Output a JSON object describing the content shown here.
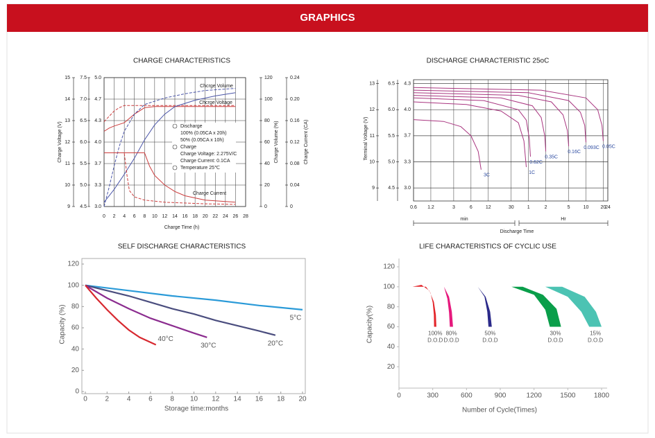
{
  "header": {
    "title": "GRAPHICS"
  },
  "chart_data": [
    {
      "type": "multi-axis-line",
      "title": "CHARGE CHARACTERISTICS",
      "xlabel": "Charge Time (h)",
      "xlim": [
        0,
        28
      ],
      "xticks": [
        0,
        2,
        4,
        6,
        8,
        10,
        12,
        14,
        16,
        18,
        20,
        22,
        24,
        26,
        28
      ],
      "grid": true,
      "axes": [
        {
          "label": "Charge Voltage (V)",
          "lim": [
            9,
            15
          ],
          "ticks": [
            9,
            10,
            11,
            12,
            13,
            14,
            15
          ]
        },
        {
          "lim": [
            4.5,
            7.5
          ],
          "ticks": [
            4.5,
            {
              "value": 5,
              "label": "5.0"
            },
            5.5,
            {
              "value": 6,
              "label": "6.0"
            },
            6.5,
            {
              "value": 7,
              "label": "7.0"
            },
            7.5
          ]
        },
        {
          "lim": [
            3,
            5
          ],
          "ticks": [
            {
              "value": 3,
              "label": "3.0"
            },
            {
              "value": 3.333,
              "label": "3.3"
            },
            {
              "value": 3.667,
              "label": "3.7"
            },
            {
              "value": 4,
              "label": "4.0"
            },
            {
              "value": 4.333,
              "label": "4.3"
            },
            {
              "value": 4.667,
              "label": "4.7"
            },
            {
              "value": 5,
              "label": "5.0"
            }
          ]
        },
        {
          "label": "Charge Volume (%)",
          "lim": [
            0,
            120
          ],
          "ticks": [
            0,
            20,
            40,
            60,
            80,
            100,
            120
          ]
        },
        {
          "label": "Charge Current (CA)",
          "lim": [
            0,
            0.24
          ],
          "ticks": [
            0,
            0.04,
            0.08,
            0.12,
            0.16,
            {
              "value": 0.2,
              "label": "0.20"
            },
            0.24
          ]
        }
      ],
      "annotations": [
        "Chcrge Volume",
        "Chcrge Voltage",
        "Charge Current"
      ],
      "legend": [
        "Discharge",
        "100%  (0.05CA x 20h)",
        "50%  (0.05CA x 10h)",
        "Charge",
        "Charge Voltage: 2.275V/C",
        "Charge Current: 0.1CA",
        "Temperature 25℃"
      ],
      "series": [
        {
          "axis": 0,
          "color": "#cc3b3b",
          "dashed": false,
          "x": [
            0,
            1,
            2,
            4,
            6,
            8,
            10,
            14,
            20,
            26
          ],
          "values": [
            12.5,
            12.65,
            12.75,
            12.9,
            13.3,
            13.6,
            13.65,
            13.65,
            13.65,
            13.65
          ]
        },
        {
          "axis": 0,
          "color": "#cc3b3b",
          "dashed": true,
          "x": [
            0,
            1,
            2,
            3,
            4,
            8,
            14,
            20,
            26
          ],
          "values": [
            12.95,
            13.2,
            13.45,
            13.6,
            13.7,
            13.7,
            13.7,
            13.7,
            13.7
          ]
        },
        {
          "axis": 3,
          "color": "#4a55a8",
          "dashed": false,
          "x": [
            0,
            2,
            4,
            6,
            8,
            10,
            12,
            14,
            18,
            22,
            26
          ],
          "values": [
            4,
            16,
            30,
            45,
            62,
            76,
            86,
            93,
            99,
            103,
            106
          ]
        },
        {
          "axis": 3,
          "color": "#4a55a8",
          "dashed": true,
          "x": [
            0,
            1,
            2,
            3,
            4,
            6,
            8,
            12,
            16,
            20,
            26
          ],
          "values": [
            0,
            18,
            38,
            56,
            70,
            86,
            95,
            101,
            105,
            108,
            110
          ]
        },
        {
          "axis": 4,
          "color": "#cc3b3b",
          "dashed": false,
          "x": [
            0,
            8,
            9,
            10,
            12,
            14,
            16,
            20,
            26
          ],
          "values": [
            0.1,
            0.1,
            0.075,
            0.058,
            0.04,
            0.028,
            0.02,
            0.012,
            0.008
          ]
        },
        {
          "axis": 4,
          "color": "#cc3b3b",
          "dashed": true,
          "x": [
            0,
            4,
            4.5,
            5,
            6,
            8,
            12,
            20,
            26
          ],
          "values": [
            0.1,
            0.1,
            0.06,
            0.03,
            0.018,
            0.012,
            0.008,
            0.005,
            0.004
          ]
        }
      ]
    },
    {
      "type": "multi-axis-line",
      "title": "DISCHARGE CHARACTERISTIC 25oC",
      "xlabel": "Discharge Time",
      "xlog": true,
      "xlim": [
        0.6,
        1440
      ],
      "xticks": [
        0.6,
        1.2,
        3,
        6,
        12,
        30,
        {
          "value": 60,
          "label": "1"
        },
        {
          "value": 120,
          "label": "2"
        },
        {
          "value": 300,
          "label": "5"
        },
        {
          "value": 600,
          "label": "10"
        },
        {
          "value": 1200,
          "label": "20"
        },
        {
          "value": 1440,
          "label": "24"
        }
      ],
      "xgroups": [
        "min",
        "Hr"
      ],
      "grid": true,
      "axes": [
        {
          "label": "Terminal Voltage (V)",
          "lim": [
            8.5,
            13.15
          ],
          "ticks": [
            9,
            10,
            11,
            12,
            13
          ]
        },
        {
          "lim": [
            4.25,
            6.575
          ],
          "ticks": [
            4.5,
            {
              "value": 5,
              "label": "5.0"
            },
            5.5,
            {
              "value": 6,
              "label": "6.0"
            },
            6.5
          ]
        },
        {
          "lim": [
            2.833,
            4.383
          ],
          "ticks": [
            {
              "value": 3,
              "label": "3.0"
            },
            {
              "value": 3.333,
              "label": "3.3"
            },
            {
              "value": 3.667,
              "label": "3.7"
            },
            {
              "value": 4,
              "label": "4.0"
            },
            {
              "value": 4.333,
              "label": "4.3"
            }
          ]
        }
      ],
      "series": [
        {
          "name": "3C",
          "axis": 0,
          "color": "#a8347f",
          "dashed": false,
          "x": [
            0.6,
            2,
            4,
            6,
            8,
            9
          ],
          "values": [
            11.62,
            11.55,
            11.35,
            11.0,
            10.4,
            9.7
          ]
        },
        {
          "name": "1C",
          "axis": 0,
          "color": "#a8347f",
          "dashed": false,
          "x": [
            0.6,
            5,
            20,
            40,
            50,
            55
          ],
          "values": [
            12.3,
            12.2,
            11.95,
            11.5,
            10.8,
            9.8
          ]
        },
        {
          "name": "0.62C",
          "axis": 0,
          "color": "#a8347f",
          "dashed": false,
          "x": [
            0.6,
            10,
            40,
            55,
            62,
            65
          ],
          "values": [
            12.45,
            12.35,
            12.0,
            11.6,
            10.9,
            10.2
          ]
        },
        {
          "name": "0.35C",
          "axis": 0,
          "color": "#a8347f",
          "dashed": false,
          "x": [
            0.6,
            20,
            70,
            100,
            115,
            120
          ],
          "values": [
            12.55,
            12.45,
            12.15,
            11.7,
            11.0,
            10.4
          ]
        },
        {
          "name": "0.16C",
          "axis": 0,
          "color": "#a8347f",
          "dashed": false,
          "x": [
            0.6,
            40,
            150,
            240,
            285,
            300
          ],
          "values": [
            12.65,
            12.55,
            12.3,
            11.8,
            11.2,
            10.6
          ]
        },
        {
          "name": "0.093C",
          "axis": 0,
          "color": "#a8347f",
          "dashed": false,
          "x": [
            0.6,
            60,
            300,
            480,
            570,
            600
          ],
          "values": [
            12.75,
            12.65,
            12.35,
            11.9,
            11.4,
            10.75
          ]
        },
        {
          "name": "0.05C",
          "axis": 0,
          "color": "#a8347f",
          "dashed": false,
          "x": [
            0.6,
            100,
            600,
            960,
            1140,
            1200
          ],
          "values": [
            12.85,
            12.75,
            12.45,
            12.0,
            11.4,
            10.8
          ]
        }
      ]
    },
    {
      "type": "line",
      "title": "SELF DISCHARGE CHARACTERISTICS",
      "xlabel": "Storage time:months",
      "ylabel": "Capacity (%)",
      "xlim": [
        0,
        20
      ],
      "xticks": [
        0,
        2,
        4,
        6,
        8,
        10,
        12,
        14,
        16,
        18,
        20
      ],
      "ylim": [
        0,
        120
      ],
      "yticks": [
        0,
        20,
        40,
        60,
        80,
        100,
        120
      ],
      "series": [
        {
          "name": "5°C",
          "color": "#2a9ad8",
          "x": [
            0,
            4,
            8,
            12,
            16,
            20
          ],
          "values": [
            100,
            95,
            90,
            86,
            81,
            77
          ]
        },
        {
          "name": "20°C",
          "color": "#4a4d7e",
          "x": [
            0,
            2,
            4,
            6,
            8,
            10,
            12,
            14,
            16,
            17.5
          ],
          "values": [
            100,
            95,
            90,
            84,
            78,
            73,
            67,
            62,
            57,
            53
          ]
        },
        {
          "name": "30°C",
          "color": "#8b2c8f",
          "x": [
            0,
            2,
            4,
            6,
            8,
            10,
            11.2
          ],
          "values": [
            100,
            88,
            78,
            69,
            62,
            55,
            51
          ]
        },
        {
          "name": "40°C",
          "color": "#d7282f",
          "x": [
            0,
            1,
            2,
            3,
            4,
            5,
            6.5
          ],
          "values": [
            100,
            88,
            77,
            67,
            58,
            51,
            44
          ]
        }
      ]
    },
    {
      "type": "band",
      "title": "LIFE CHARACTERISTICS OF CYCLIC USE",
      "xlabel": "Number of Cycle(Times)",
      "ylabel": "Capacity(%)",
      "xlim": [
        0,
        1800
      ],
      "xticks": [
        0,
        300,
        600,
        900,
        1200,
        1500,
        1800
      ],
      "ylim": [
        0,
        120
      ],
      "yticks": [
        20,
        40,
        60,
        80,
        100,
        120
      ],
      "series": [
        {
          "name": "100%",
          "sublabel": "D.O.D",
          "color": "#e3262b",
          "outer": {
            "x": [
              120,
              200,
              270,
              310,
              328,
              332
            ],
            "y": [
              100,
              102,
              96,
              85,
              72,
              60
            ]
          },
          "inner": {
            "x": [
              240,
              280,
              300,
              310,
              312
            ],
            "y": [
              100,
              94,
              84,
              72,
              60
            ]
          }
        },
        {
          "name": "80%",
          "sublabel": "D.O.D",
          "color": "#e6197d",
          "outer": {
            "x": [
              330,
              400,
              445,
              470,
              480
            ],
            "y": [
              100,
              100,
              90,
              75,
              60
            ]
          },
          "inner": {
            "x": [
              400,
              430,
              445,
              452
            ],
            "y": [
              100,
              88,
              74,
              60
            ]
          }
        },
        {
          "name": "50%",
          "sublabel": "D.O.D",
          "color": "#2b2a8a",
          "outer": {
            "x": [
              600,
              700,
              770,
              810,
              825
            ],
            "y": [
              100,
              100,
              90,
              75,
              60
            ]
          },
          "inner": {
            "x": [
              700,
              760,
              785,
              795
            ],
            "y": [
              100,
              90,
              75,
              60
            ]
          }
        },
        {
          "name": "30%",
          "sublabel": "D.O.D",
          "color": "#0a9e4a",
          "outer": {
            "x": [
              900,
              1100,
              1280,
              1400,
              1440
            ],
            "y": [
              100,
              100,
              92,
              78,
              60
            ]
          },
          "inner": {
            "x": [
              1000,
              1200,
              1300,
              1340
            ],
            "y": [
              100,
              92,
              77,
              60
            ]
          }
        },
        {
          "name": "15%",
          "sublabel": "D.O.D",
          "color": "#4cc3b3",
          "outer": {
            "x": [
              1150,
              1450,
              1650,
              1750,
              1800
            ],
            "y": [
              100,
              100,
              90,
              75,
              60
            ]
          },
          "inner": {
            "x": [
              1300,
              1500,
              1620,
              1690
            ],
            "y": [
              100,
              90,
              75,
              60
            ]
          }
        }
      ]
    }
  ]
}
